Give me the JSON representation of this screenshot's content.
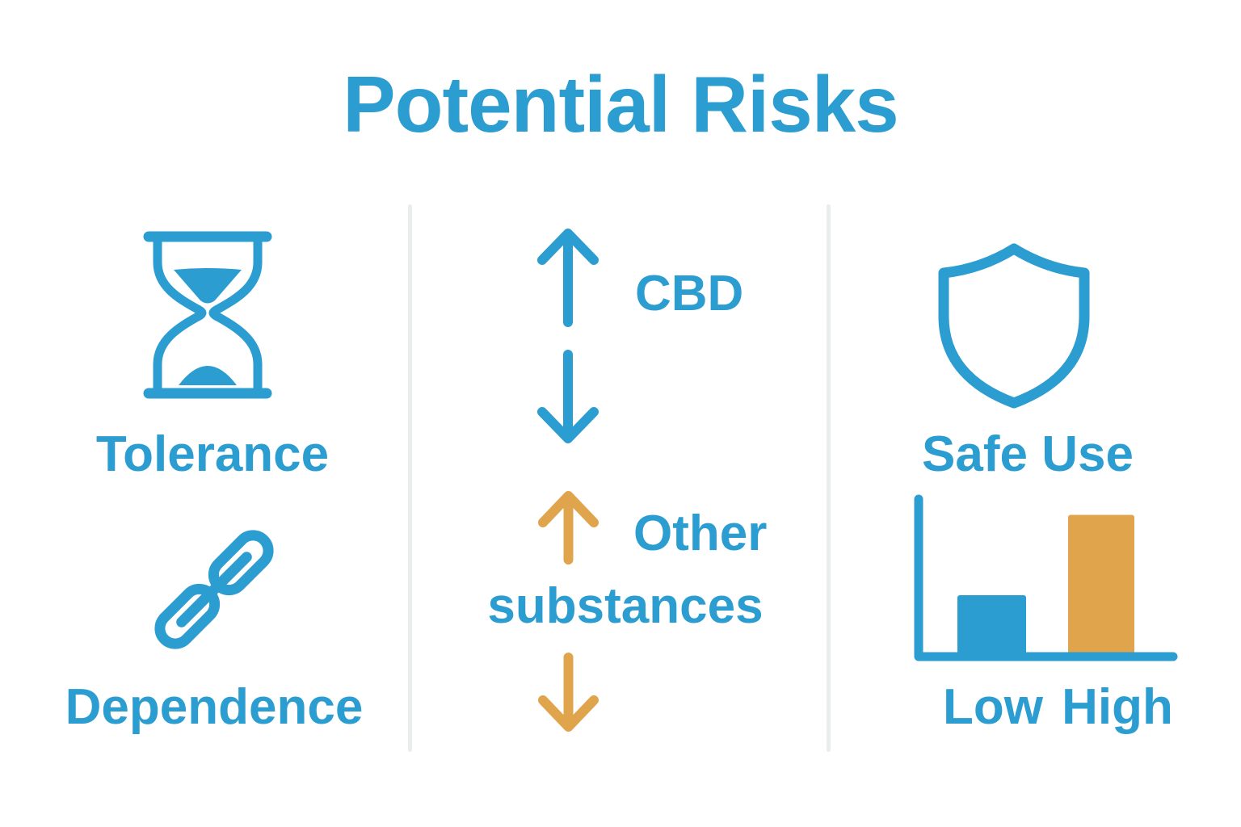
{
  "title": "Potential Risks",
  "colors": {
    "primary_blue": "#2C9DD1",
    "accent_orange": "#E0A44D",
    "divider_gray": "#E9EDEB",
    "background": "#FFFFFF"
  },
  "sections": {
    "left": {
      "items": [
        {
          "icon": "hourglass-icon",
          "label": "Tolerance"
        },
        {
          "icon": "chain-link-icon",
          "label": "Dependence"
        }
      ]
    },
    "middle": {
      "cbd": {
        "label": "CBD",
        "arrows": [
          "up-arrow-icon",
          "down-arrow-icon"
        ],
        "arrow_color": "#2C9DD1"
      },
      "other": {
        "label_line1": "Other",
        "label_line2": "substances",
        "arrows": [
          "up-arrow-icon",
          "down-arrow-icon"
        ],
        "arrow_color": "#E0A44D"
      }
    },
    "right": {
      "icon": "shield-icon",
      "label": "Safe Use"
    }
  },
  "chart_data": {
    "type": "bar",
    "categories": [
      "Low",
      "High"
    ],
    "values": [
      39,
      90
    ],
    "ylim": [
      0,
      100
    ],
    "bar_colors": [
      "#2C9DD1",
      "#E0A44D"
    ],
    "title": "",
    "xlabel": "",
    "ylabel": "",
    "grid": false,
    "legend": false
  }
}
